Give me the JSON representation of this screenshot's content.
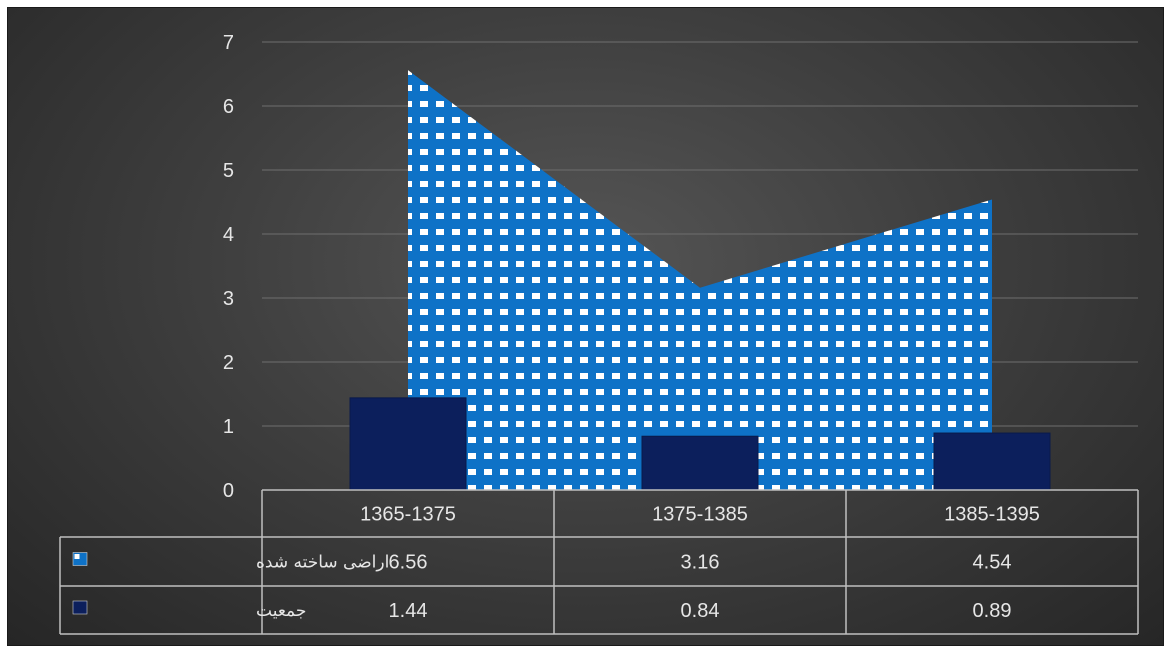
{
  "chart_data": {
    "type": "area",
    "categories": [
      "1365-1375",
      "1375-1385",
      "1385-1395"
    ],
    "series": [
      {
        "name": "اراضی ساخته شده",
        "kind": "area",
        "values": [
          6.56,
          3.16,
          4.54
        ],
        "color": "#0e72c7",
        "pattern": "white-dots"
      },
      {
        "name": "جمعیت",
        "kind": "bar",
        "values": [
          1.44,
          0.84,
          0.89
        ],
        "color": "#0c1f5c"
      }
    ],
    "ylim": [
      0,
      7
    ],
    "yticks": [
      "0",
      "1",
      "2",
      "3",
      "4",
      "5",
      "6",
      "7"
    ],
    "grid": true,
    "legend": "data-table",
    "table_values": [
      [
        "6.56",
        "3.16",
        "4.54"
      ],
      [
        "1.44",
        "0.84",
        "0.89"
      ]
    ]
  }
}
